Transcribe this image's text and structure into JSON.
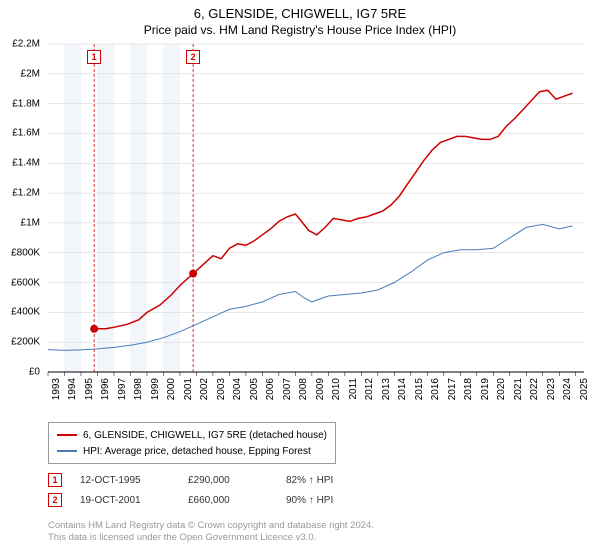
{
  "title": "6, GLENSIDE, CHIGWELL, IG7 5RE",
  "subtitle": "Price paid vs. HM Land Registry's House Price Index (HPI)",
  "chart": {
    "type": "line",
    "x_domain": [
      1993,
      2025.5
    ],
    "y_domain": [
      0,
      2200000
    ],
    "y_ticks": [
      {
        "v": 0,
        "label": "£0"
      },
      {
        "v": 200000,
        "label": "£200K"
      },
      {
        "v": 400000,
        "label": "£400K"
      },
      {
        "v": 600000,
        "label": "£600K"
      },
      {
        "v": 800000,
        "label": "£800K"
      },
      {
        "v": 1000000,
        "label": "£1M"
      },
      {
        "v": 1200000,
        "label": "£1.2M"
      },
      {
        "v": 1400000,
        "label": "£1.4M"
      },
      {
        "v": 1600000,
        "label": "£1.6M"
      },
      {
        "v": 1800000,
        "label": "£1.8M"
      },
      {
        "v": 2000000,
        "label": "£2M"
      },
      {
        "v": 2200000,
        "label": "£2.2M"
      }
    ],
    "x_ticks": [
      1993,
      1994,
      1995,
      1996,
      1997,
      1998,
      1999,
      2000,
      2001,
      2002,
      2003,
      2004,
      2005,
      2006,
      2007,
      2008,
      2009,
      2010,
      2011,
      2012,
      2013,
      2014,
      2015,
      2016,
      2017,
      2018,
      2019,
      2020,
      2021,
      2022,
      2023,
      2024,
      2025
    ],
    "bg_bands": [
      {
        "from": 1994,
        "to": 2002,
        "color": "#f2f6fb"
      }
    ],
    "year_stripes": [
      {
        "from": 1995,
        "to": 1996,
        "color": "#ffffff"
      },
      {
        "from": 1997,
        "to": 1998,
        "color": "#ffffff"
      },
      {
        "from": 1999,
        "to": 2000,
        "color": "#ffffff"
      },
      {
        "from": 2001,
        "to": 2002,
        "color": "#ffffff"
      }
    ],
    "grid_color": "#d0d0d0",
    "series": [
      {
        "name": "property",
        "label": "6, GLENSIDE, CHIGWELL, IG7 5RE (detached house)",
        "color": "#cc0000",
        "width": 1.5,
        "data": [
          [
            1995.8,
            290000
          ],
          [
            1996.5,
            290000
          ],
          [
            1997.0,
            300000
          ],
          [
            1997.8,
            320000
          ],
          [
            1998.5,
            350000
          ],
          [
            1999.0,
            400000
          ],
          [
            1999.8,
            450000
          ],
          [
            2000.5,
            520000
          ],
          [
            2001.0,
            580000
          ],
          [
            2001.8,
            660000
          ],
          [
            2002.5,
            730000
          ],
          [
            2003.0,
            780000
          ],
          [
            2003.5,
            760000
          ],
          [
            2004.0,
            830000
          ],
          [
            2004.5,
            860000
          ],
          [
            2005.0,
            850000
          ],
          [
            2005.5,
            880000
          ],
          [
            2006.0,
            920000
          ],
          [
            2006.5,
            960000
          ],
          [
            2007.0,
            1010000
          ],
          [
            2007.5,
            1040000
          ],
          [
            2008.0,
            1060000
          ],
          [
            2008.3,
            1020000
          ],
          [
            2008.8,
            950000
          ],
          [
            2009.3,
            920000
          ],
          [
            2009.8,
            970000
          ],
          [
            2010.3,
            1030000
          ],
          [
            2010.8,
            1020000
          ],
          [
            2011.3,
            1010000
          ],
          [
            2011.8,
            1030000
          ],
          [
            2012.3,
            1040000
          ],
          [
            2012.8,
            1060000
          ],
          [
            2013.3,
            1080000
          ],
          [
            2013.8,
            1120000
          ],
          [
            2014.3,
            1180000
          ],
          [
            2014.8,
            1260000
          ],
          [
            2015.3,
            1340000
          ],
          [
            2015.8,
            1420000
          ],
          [
            2016.3,
            1490000
          ],
          [
            2016.8,
            1540000
          ],
          [
            2017.3,
            1560000
          ],
          [
            2017.8,
            1580000
          ],
          [
            2018.3,
            1580000
          ],
          [
            2018.8,
            1570000
          ],
          [
            2019.3,
            1560000
          ],
          [
            2019.8,
            1560000
          ],
          [
            2020.3,
            1580000
          ],
          [
            2020.8,
            1650000
          ],
          [
            2021.3,
            1700000
          ],
          [
            2021.8,
            1760000
          ],
          [
            2022.3,
            1820000
          ],
          [
            2022.8,
            1880000
          ],
          [
            2023.3,
            1890000
          ],
          [
            2023.8,
            1830000
          ],
          [
            2024.3,
            1850000
          ],
          [
            2024.8,
            1870000
          ]
        ]
      },
      {
        "name": "hpi",
        "label": "HPI: Average price, detached house, Epping Forest",
        "color": "#4a7bb8",
        "width": 1,
        "data": [
          [
            1993.0,
            150000
          ],
          [
            1994.0,
            145000
          ],
          [
            1995.0,
            148000
          ],
          [
            1996.0,
            155000
          ],
          [
            1997.0,
            165000
          ],
          [
            1998.0,
            180000
          ],
          [
            1999.0,
            200000
          ],
          [
            2000.0,
            230000
          ],
          [
            2001.0,
            270000
          ],
          [
            2002.0,
            320000
          ],
          [
            2003.0,
            370000
          ],
          [
            2004.0,
            420000
          ],
          [
            2005.0,
            440000
          ],
          [
            2006.0,
            470000
          ],
          [
            2007.0,
            520000
          ],
          [
            2008.0,
            540000
          ],
          [
            2008.5,
            500000
          ],
          [
            2009.0,
            470000
          ],
          [
            2010.0,
            510000
          ],
          [
            2011.0,
            520000
          ],
          [
            2012.0,
            530000
          ],
          [
            2013.0,
            550000
          ],
          [
            2014.0,
            600000
          ],
          [
            2015.0,
            670000
          ],
          [
            2016.0,
            750000
          ],
          [
            2017.0,
            800000
          ],
          [
            2018.0,
            820000
          ],
          [
            2019.0,
            820000
          ],
          [
            2020.0,
            830000
          ],
          [
            2021.0,
            900000
          ],
          [
            2022.0,
            970000
          ],
          [
            2023.0,
            990000
          ],
          [
            2024.0,
            960000
          ],
          [
            2024.8,
            980000
          ]
        ]
      }
    ],
    "markers": [
      {
        "x": 1995.8,
        "y": 290000,
        "color": "#cc0000",
        "r": 4
      },
      {
        "x": 2001.8,
        "y": 660000,
        "color": "#cc0000",
        "r": 4
      }
    ],
    "event_lines": [
      {
        "n": "1",
        "x": 1995.8,
        "color": "#cc0000"
      },
      {
        "n": "2",
        "x": 2001.8,
        "color": "#cc0000"
      }
    ]
  },
  "legend": {
    "border_color": "#999999",
    "items": [
      {
        "color": "#cc0000",
        "label": "6, GLENSIDE, CHIGWELL, IG7 5RE (detached house)"
      },
      {
        "color": "#4a7bb8",
        "label": "HPI: Average price, detached house, Epping Forest"
      }
    ]
  },
  "sales": [
    {
      "n": "1",
      "date": "12-OCT-1995",
      "price": "£290,000",
      "hpi": "82% ↑ HPI",
      "color": "#cc0000"
    },
    {
      "n": "2",
      "date": "19-OCT-2001",
      "price": "£660,000",
      "hpi": "90% ↑ HPI",
      "color": "#cc0000"
    }
  ],
  "footnote": {
    "line1": "Contains HM Land Registry data © Crown copyright and database right 2024.",
    "line2": "This data is licensed under the Open Government Licence v3.0."
  }
}
